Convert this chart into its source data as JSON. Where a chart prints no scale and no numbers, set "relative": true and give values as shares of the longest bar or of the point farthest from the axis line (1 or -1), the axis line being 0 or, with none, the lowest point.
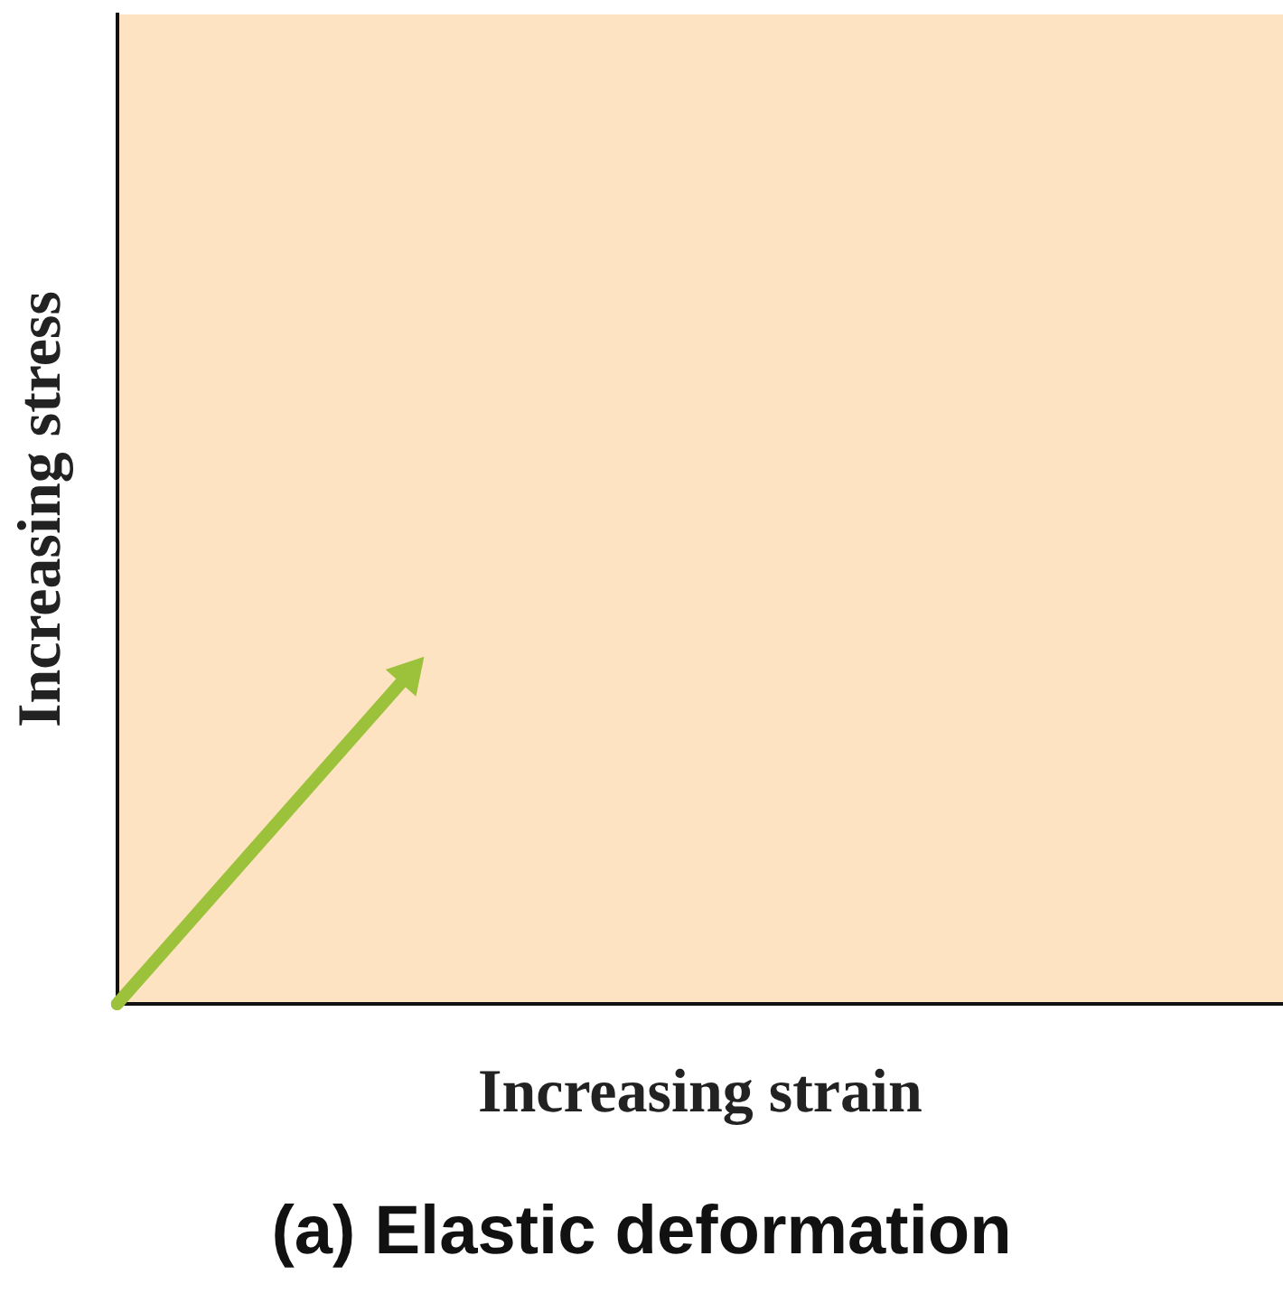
{
  "chart_data": {
    "type": "line",
    "title": "(a) Elastic deformation",
    "xlabel": "Increasing strain",
    "ylabel": "Increasing stress",
    "relative": true,
    "categories": [
      null,
      null,
      null,
      null,
      null
    ],
    "series": [
      {
        "color": "#9cc23c",
        "values": [
          0,
          1,
          null,
          null,
          null
        ]
      }
    ],
    "legend": false,
    "grid": false,
    "marker": "triangle",
    "line_style": "solid"
  }
}
